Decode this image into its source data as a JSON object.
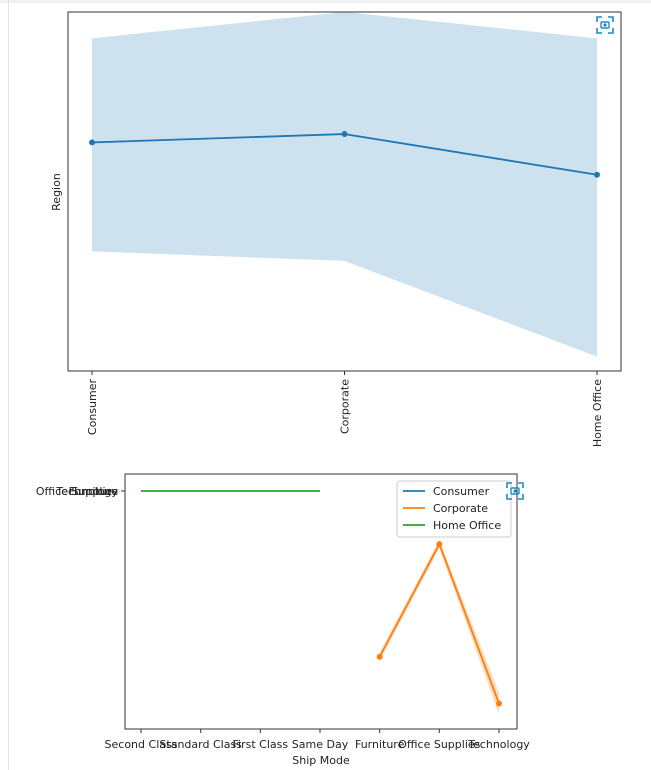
{
  "page": {
    "background": "#ffffff",
    "divider_color": "#e3e3e3"
  },
  "icons": {
    "screenshot_button": "camera-capture-icon"
  },
  "colors": {
    "blue": "#1f77b4",
    "orange": "#ff7f0e",
    "green": "#2ca02c"
  },
  "chart_data": [
    {
      "type": "line",
      "title": "",
      "xlabel": "",
      "ylabel": "Region",
      "categories": [
        "Consumer",
        "Corporate",
        "Home Office"
      ],
      "series": [
        {
          "values": [
            0.555,
            0.59,
            0.42
          ],
          "ci_lower": [
            0.1,
            0.06,
            -0.34
          ],
          "ci_upper": [
            0.99,
            1.1,
            0.99
          ],
          "color": "#1f77b4",
          "markers": true
        }
      ],
      "ylim": [
        -0.4,
        1.1
      ],
      "y_tick_labels_shown": false,
      "grid": false,
      "legend": false
    },
    {
      "type": "line",
      "title": "",
      "xlabel": "Ship Mode",
      "ylabel": "",
      "categories": [
        "Second Class",
        "Standard Class",
        "First Class",
        "Same Day",
        "Furniture",
        "Office Supplies",
        "Technology"
      ],
      "y_tick_labels": [
        "Office Supplies",
        "Technology",
        "Furniture"
      ],
      "series": [
        {
          "name": "Consumer",
          "color": "#1f77b4",
          "values": [
            null,
            null,
            null,
            null,
            null,
            null,
            null
          ]
        },
        {
          "name": "Corporate",
          "color": "#ff7f0e",
          "values": [
            null,
            null,
            null,
            null,
            0.22,
            0.75,
            0.0
          ],
          "ci_lower": [
            null,
            null,
            null,
            null,
            0.2,
            0.73,
            -0.05
          ],
          "ci_upper": [
            null,
            null,
            null,
            null,
            0.24,
            0.77,
            0.05
          ],
          "markers": true
        },
        {
          "name": "Home Office",
          "color": "#2ca02c",
          "values": [
            1.0,
            1.0,
            1.0,
            1.0,
            null,
            null,
            null
          ]
        }
      ],
      "ylim": [
        -0.12,
        1.08
      ],
      "legend": {
        "position": "top-right"
      },
      "grid": false
    }
  ]
}
